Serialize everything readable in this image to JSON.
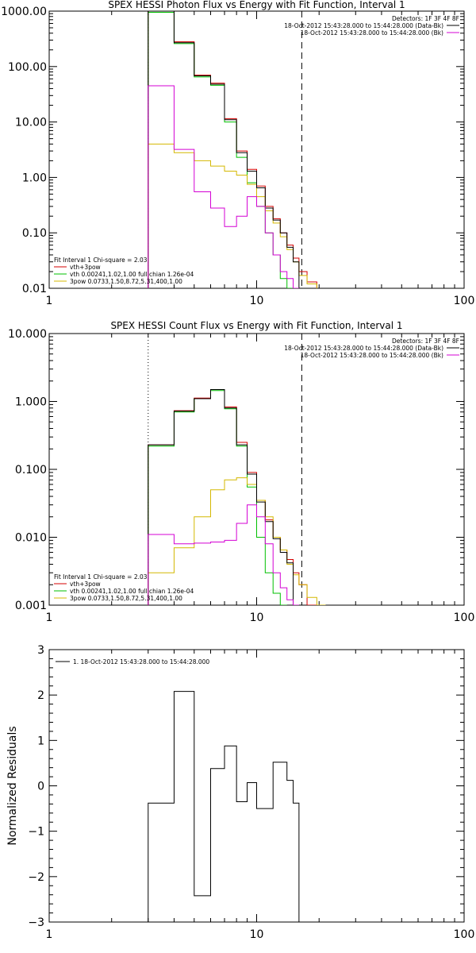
{
  "chart_data": [
    {
      "type": "line",
      "step": true,
      "title": "SPEX HESSI Photon Flux vs Energy with Fit Function, Interval 1",
      "xscale": "log",
      "yscale": "log",
      "xlim": [
        1,
        100
      ],
      "ylim": [
        0.01,
        1000
      ],
      "xticklabels": [
        "1",
        "10",
        "100"
      ],
      "yticklabels": [
        "0.01",
        "0.10",
        "1.00",
        "10.00",
        "100.00",
        "1000.00"
      ],
      "xedges": [
        3.0,
        4.0,
        5.0,
        6.0,
        7.0,
        8.0,
        9.0,
        10.0,
        11.0,
        12.0,
        13.0,
        14.0,
        15.0,
        16.0,
        17.5,
        19.5,
        21.5
      ],
      "vlines": [
        {
          "x": 3.0,
          "style": "dotted"
        },
        {
          "x": 16.5,
          "style": "dashed"
        }
      ],
      "legend_top_right": [
        "Detectors: 1F 3F 4F 8F",
        "18-Oct-2012 15:43:28.000 to 15:44:28.000 (Data-Bk)",
        "18-Oct-2012 15:43:28.000 to 15:44:28.000 (Bk)"
      ],
      "legend_bottom_left": [
        "Fit Interval 1   Chi-square = 2.03",
        "vth+3pow",
        "vth 0.00241,1.02,1.00  full chian 1.26e-04",
        "3pow 0.0733,1.50,8.72,5.31,400,1.00"
      ],
      "series": [
        {
          "name": "vth+3pow",
          "color": "#d40000",
          "values": [
            1000,
            280,
            70,
            50,
            11.5,
            3.0,
            1.4,
            0.7,
            0.3,
            0.18,
            0.1,
            0.06,
            0.035,
            0.02,
            0.013,
            null
          ]
        },
        {
          "name": "vth 0.00241,1.02,1.00  full chian 1.26e-04",
          "color": "#00c000",
          "values": [
            950,
            260,
            65,
            46,
            10,
            2.3,
            0.8,
            0.3,
            0.1,
            0.04,
            0.015,
            0.01,
            0.008,
            null,
            null,
            null
          ]
        },
        {
          "name": "3pow 0.0733,1.50,8.72,5.31,400,1.00",
          "color": "#d4b800",
          "values": [
            4.0,
            2.8,
            2.0,
            1.6,
            1.3,
            1.1,
            0.75,
            0.45,
            0.25,
            0.15,
            0.085,
            0.05,
            0.03,
            0.017,
            0.012,
            null
          ]
        },
        {
          "name": "18-Oct-2012 15:43:28.000 to 15:44:28.000 (Data-Bk)",
          "color": "#000000",
          "values": [
            1000,
            270,
            68,
            48,
            11,
            2.8,
            1.3,
            0.65,
            0.28,
            0.17,
            0.1,
            0.055,
            0.03,
            null,
            null,
            null
          ]
        },
        {
          "name": "18-Oct-2012 15:43:28.000 to 15:44:28.000 (Bk)",
          "color": "#d400d4",
          "values": [
            45,
            3.2,
            0.55,
            0.28,
            0.13,
            0.2,
            0.45,
            0.3,
            0.1,
            0.04,
            0.02,
            0.015,
            0.01,
            null,
            null,
            null
          ]
        }
      ]
    },
    {
      "type": "line",
      "step": true,
      "title": "SPEX HESSI Count Flux vs Energy with Fit Function, Interval 1",
      "xscale": "log",
      "yscale": "log",
      "xlim": [
        1,
        100
      ],
      "ylim": [
        0.001,
        10
      ],
      "xticklabels": [
        "1",
        "10",
        "100"
      ],
      "yticklabels": [
        "0.001",
        "0.010",
        "0.100",
        "1.000",
        "10.000"
      ],
      "xedges": [
        3.0,
        4.0,
        5.0,
        6.0,
        7.0,
        8.0,
        9.0,
        10.0,
        11.0,
        12.0,
        13.0,
        14.0,
        15.0,
        16.0,
        17.5,
        19.5,
        21.5
      ],
      "vlines": [
        {
          "x": 3.0,
          "style": "dotted"
        },
        {
          "x": 16.5,
          "style": "dashed"
        }
      ],
      "legend_top_right": [
        "Detectors: 1F 3F 4F 8F",
        "18-Oct-2012 15:43:28.000 to 15:44:28.000 (Data-Bk)",
        "18-Oct-2012 15:43:28.000 to 15:44:28.000 (Bk)"
      ],
      "legend_bottom_left": [
        "Fit Interval 1   Chi-square = 2.03",
        "vth+3pow",
        "vth 0.00241,1.02,1.00  full chian 1.26e-04",
        "3pow 0.0733,1.50,8.72,5.31,400,1.00"
      ],
      "series": [
        {
          "name": "vth+3pow",
          "color": "#d40000",
          "values": [
            0.23,
            0.73,
            1.12,
            1.5,
            0.83,
            0.25,
            0.09,
            0.035,
            0.018,
            0.01,
            0.0065,
            0.0047,
            0.003,
            0.002,
            0.001,
            null
          ]
        },
        {
          "name": "vth 0.00241,1.02,1.00  full chian 1.26e-04",
          "color": "#00c000",
          "values": [
            0.22,
            0.7,
            1.1,
            1.45,
            0.78,
            0.22,
            0.055,
            0.01,
            0.003,
            0.0015,
            0.001,
            null,
            null,
            null,
            null,
            null
          ]
        },
        {
          "name": "3pow 0.0733,1.50,8.72,5.31,400,1.00",
          "color": "#d4b800",
          "values": [
            0.003,
            0.007,
            0.02,
            0.05,
            0.07,
            0.075,
            0.06,
            0.035,
            0.02,
            0.01,
            0.0065,
            0.004,
            0.0028,
            0.002,
            0.0013,
            0.001
          ]
        },
        {
          "name": "18-Oct-2012 15:43:28.000 to 15:44:28.000 (Data-Bk)",
          "color": "#000000",
          "values": [
            0.23,
            0.72,
            1.1,
            1.5,
            0.8,
            0.23,
            0.085,
            0.033,
            0.017,
            0.0095,
            0.006,
            0.0042,
            null,
            null,
            null,
            null
          ]
        },
        {
          "name": "18-Oct-2012 15:43:28.000 to 15:44:28.000 (Bk)",
          "color": "#d400d4",
          "values": [
            0.011,
            0.008,
            0.0082,
            0.0085,
            0.009,
            0.016,
            0.03,
            0.02,
            0.008,
            0.003,
            0.0018,
            0.0012,
            0.001,
            null,
            null,
            null
          ]
        }
      ]
    },
    {
      "type": "line",
      "step": true,
      "xscale": "log",
      "xlim": [
        1,
        100
      ],
      "ylim": [
        -3,
        3
      ],
      "xticklabels": [
        "1",
        "10",
        "100"
      ],
      "yticks": [
        -3,
        -2,
        -1,
        0,
        1,
        2,
        3
      ],
      "ylabel": "Normalized Residuals",
      "xedges": [
        3.0,
        3.5,
        4.0,
        4.5,
        5.0,
        5.5,
        6.0,
        6.5,
        7.0,
        7.5,
        8.0,
        8.5,
        9.0,
        9.5,
        10.0,
        11.0,
        12.0,
        13.0,
        14.0,
        15.0,
        16.0
      ],
      "legend_top_left": [
        "1. 18-Oct-2012 15:43:28.000 to 15:44:28.000"
      ],
      "series": [
        {
          "name": "1. 18-Oct-2012 15:43:28.000 to 15:44:28.000",
          "color": "#000000",
          "values": [
            -0.38,
            -0.38,
            2.08,
            2.08,
            -2.42,
            -2.42,
            0.38,
            0.38,
            0.88,
            0.88,
            -0.35,
            -0.35,
            0.07,
            0.07,
            -0.5,
            -0.5,
            0.52,
            0.52,
            0.12,
            -0.38
          ]
        }
      ]
    }
  ]
}
